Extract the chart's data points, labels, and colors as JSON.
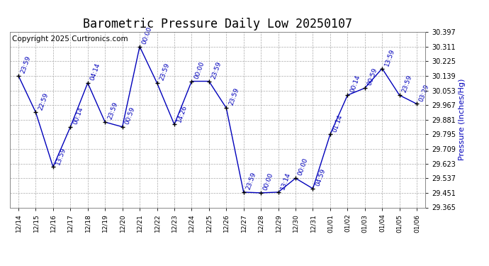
{
  "title": "Barometric Pressure Daily Low 20250107",
  "ylabel": "Pressure (Inches/Hg)",
  "copyright": "Copyright 2025 Curtronics.com",
  "line_color": "#0000BB",
  "marker_color": "#000000",
  "background_color": "#ffffff",
  "grid_color": "#aaaaaa",
  "ylim": [
    29.365,
    30.397
  ],
  "yticks": [
    29.365,
    29.451,
    29.537,
    29.623,
    29.709,
    29.795,
    29.881,
    29.967,
    30.053,
    30.139,
    30.225,
    30.311,
    30.397
  ],
  "dates": [
    "12/14",
    "12/15",
    "12/16",
    "12/17",
    "12/18",
    "12/19",
    "12/20",
    "12/21",
    "12/22",
    "12/23",
    "12/24",
    "12/25",
    "12/26",
    "12/27",
    "12/28",
    "12/29",
    "12/30",
    "12/31",
    "01/01",
    "01/02",
    "01/03",
    "01/04",
    "01/05",
    "01/06"
  ],
  "values": [
    30.139,
    29.924,
    29.603,
    29.839,
    30.097,
    29.867,
    29.839,
    30.311,
    30.097,
    29.853,
    30.107,
    30.107,
    29.95,
    29.455,
    29.451,
    29.455,
    29.537,
    29.476,
    29.795,
    30.025,
    30.067,
    30.182,
    30.025,
    29.974
  ],
  "time_labels": [
    "23:59",
    "22:59",
    "13:59",
    "00:14",
    "04:14",
    "23:59",
    "00:59",
    "00:00",
    "23:59",
    "14:26",
    "00:00",
    "23:59",
    "23:59",
    "23:59",
    "00:00",
    "13:14",
    "00:00",
    "04:59",
    "01:14",
    "00:14",
    "00:59",
    "13:59",
    "23:59",
    "03:29"
  ],
  "label_color": "#0000BB",
  "label_fontsize": 6.5,
  "title_fontsize": 12,
  "ylabel_fontsize": 8,
  "copyright_fontsize": 7.5,
  "tick_fontsize": 7,
  "xtick_fontsize": 6.5
}
